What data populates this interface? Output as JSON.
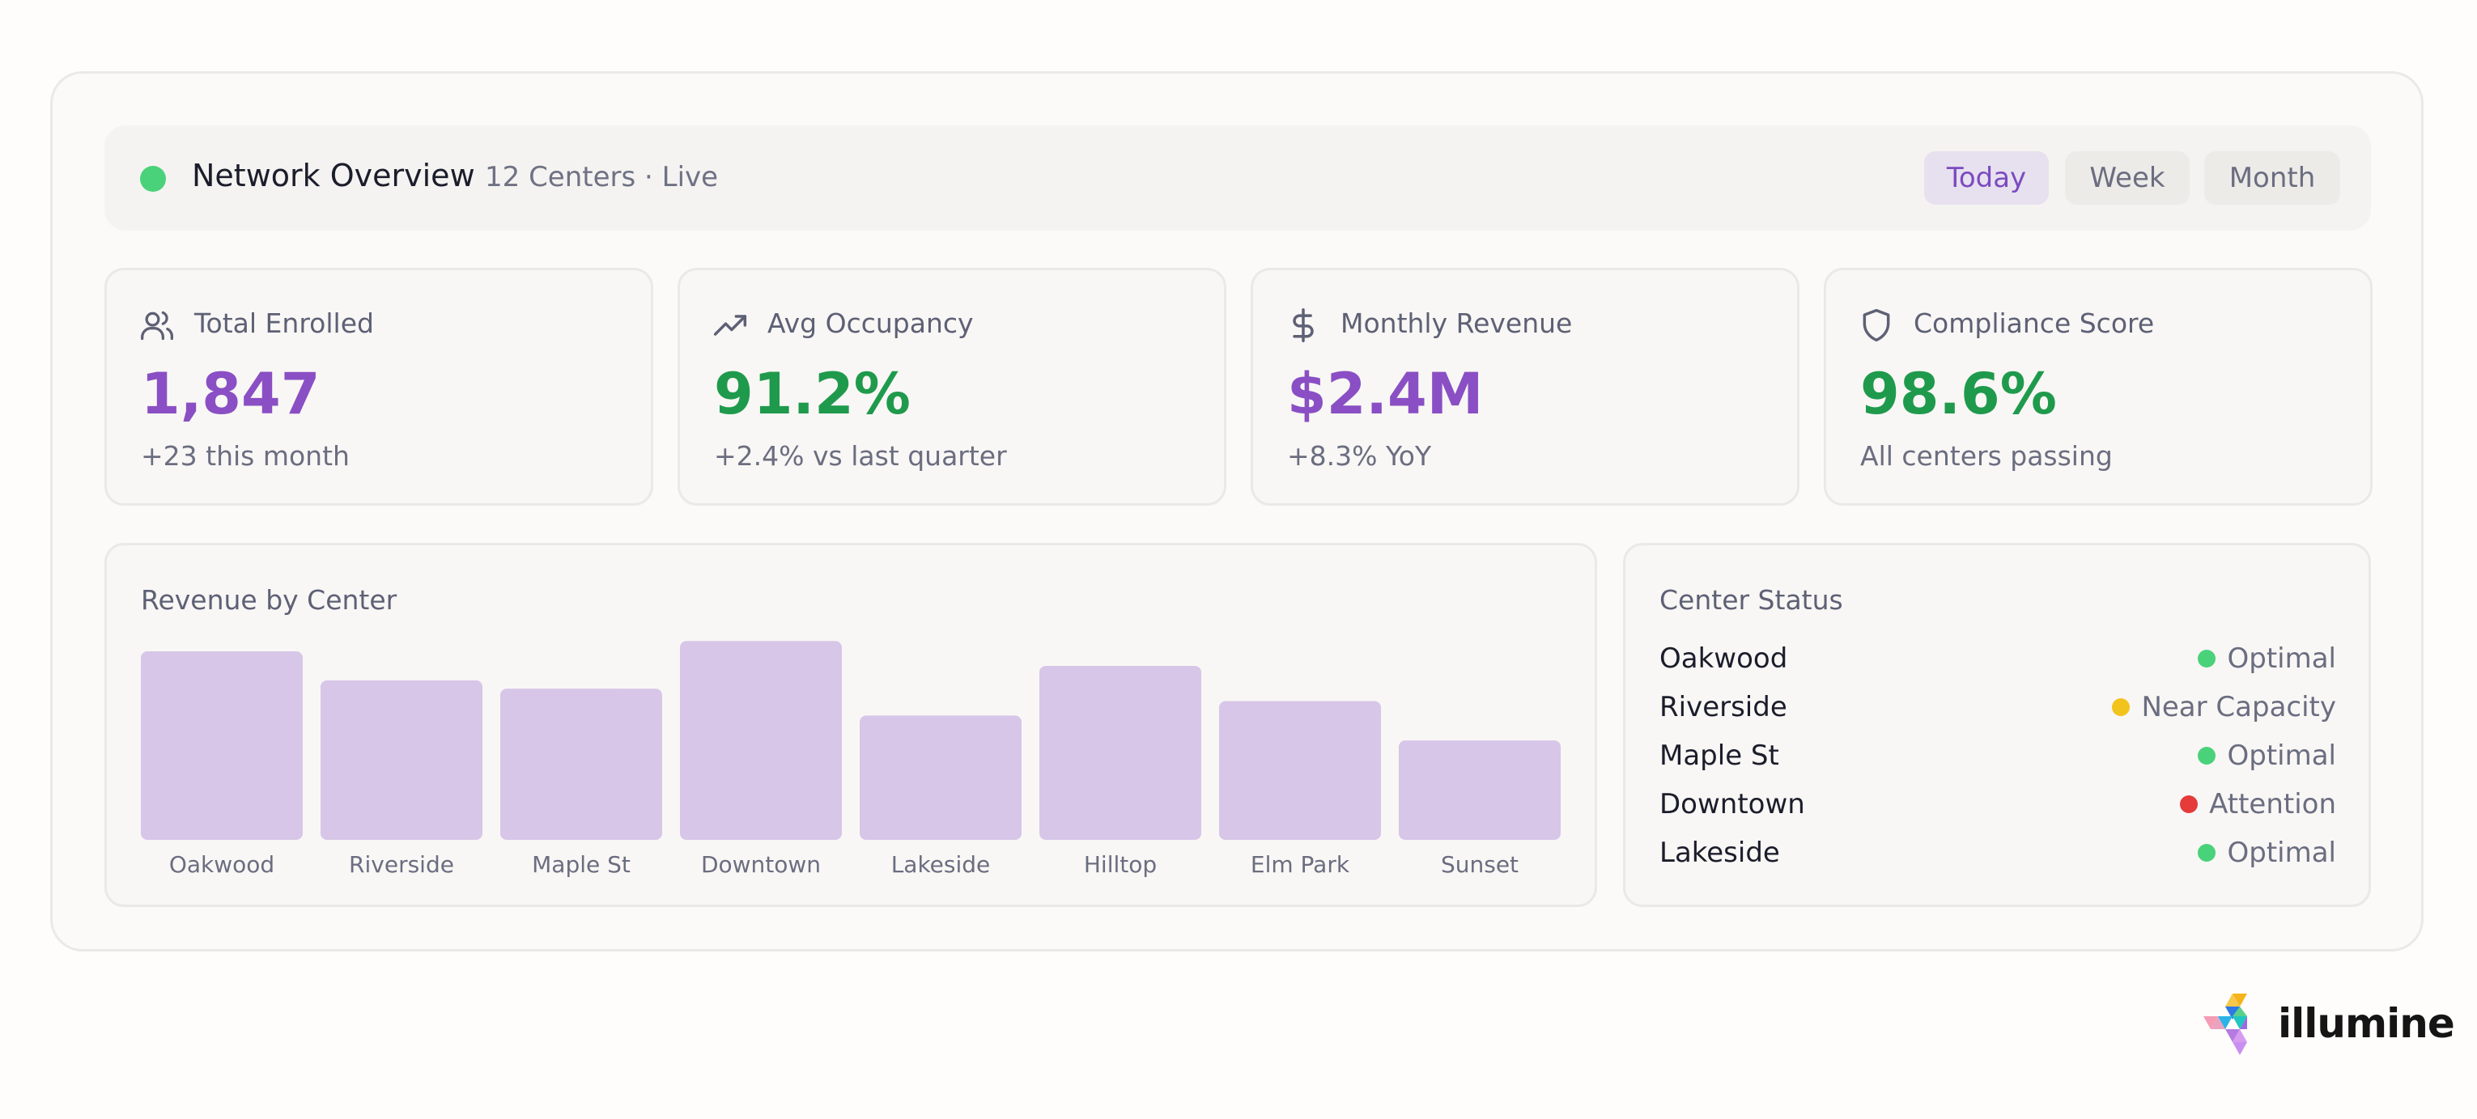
{
  "header": {
    "title": "Network Overview",
    "subtitle": "12 Centers · Live",
    "status_color": "#4ad27a",
    "periods": [
      {
        "label": "Today",
        "active": true
      },
      {
        "label": "Week",
        "active": false
      },
      {
        "label": "Month",
        "active": false
      }
    ]
  },
  "stats": [
    {
      "icon": "users-icon",
      "label": "Total Enrolled",
      "value": "1,847",
      "sub": "+23 this month",
      "value_color": "#8a4fc4"
    },
    {
      "icon": "trending-up-icon",
      "label": "Avg Occupancy",
      "value": "91.2%",
      "sub": "+2.4% vs last quarter",
      "value_color": "#1f9a4c"
    },
    {
      "icon": "dollar-icon",
      "label": "Monthly Revenue",
      "value": "$2.4M",
      "sub": "+8.3% YoY",
      "value_color": "#8a4fc4"
    },
    {
      "icon": "shield-icon",
      "label": "Compliance Score",
      "value": "98.6%",
      "sub": "All centers passing",
      "value_color": "#1f9a4c"
    }
  ],
  "revenue_chart": {
    "title": "Revenue by Center"
  },
  "chart_data": {
    "type": "bar",
    "title": "Revenue by Center",
    "categories": [
      "Oakwood",
      "Riverside",
      "Maple St",
      "Downtown",
      "Lakeside",
      "Hilltop",
      "Elm Park",
      "Sunset"
    ],
    "values": [
      91,
      77,
      73,
      96,
      60,
      84,
      67,
      48
    ],
    "ylim": [
      0,
      100
    ],
    "bar_color": "#d7c6e8",
    "grid": false,
    "legend": "none"
  },
  "center_status": {
    "title": "Center Status",
    "rows": [
      {
        "name": "Oakwood",
        "status": "Optimal",
        "color": "#4ad27a"
      },
      {
        "name": "Riverside",
        "status": "Near Capacity",
        "color": "#f2c31a"
      },
      {
        "name": "Maple St",
        "status": "Optimal",
        "color": "#4ad27a"
      },
      {
        "name": "Downtown",
        "status": "Attention",
        "color": "#e53b3b"
      },
      {
        "name": "Lakeside",
        "status": "Optimal",
        "color": "#4ad27a"
      }
    ]
  },
  "brand": {
    "name": "illumine",
    "icon": "illumine-logo-icon"
  }
}
